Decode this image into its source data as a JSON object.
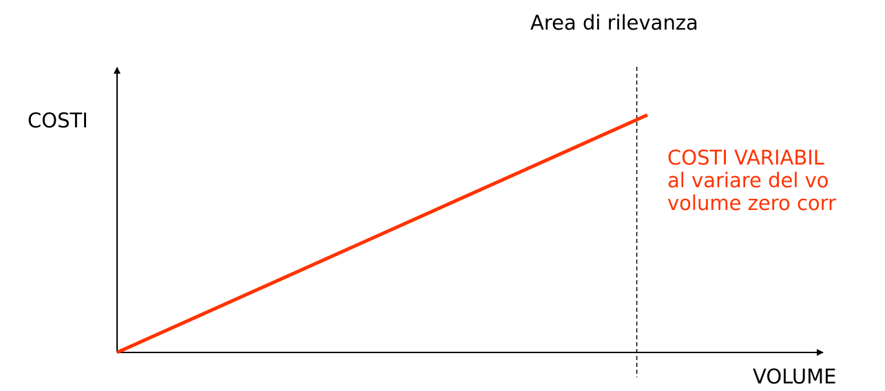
{
  "colors": {
    "background": "#ffffff",
    "axis": "#000000",
    "series": "#ff3300",
    "annotation_text": "#ff3300"
  },
  "chart_data": {
    "type": "line",
    "title": "",
    "xlabel": "VOLUME",
    "ylabel": "COSTI",
    "xlim": [
      0,
      100
    ],
    "ylim": [
      0,
      100
    ],
    "grid": false,
    "series": [
      {
        "x": [
          0,
          100
        ],
        "y": [
          0,
          100
        ]
      }
    ],
    "reference_line": {
      "type": "vertical",
      "style": "dashed",
      "x": 98,
      "label": "Area di rilevanza"
    },
    "annotation_lines": [
      "COSTI VARIABIL",
      "al variare del vo",
      "volume zero corr"
    ]
  }
}
